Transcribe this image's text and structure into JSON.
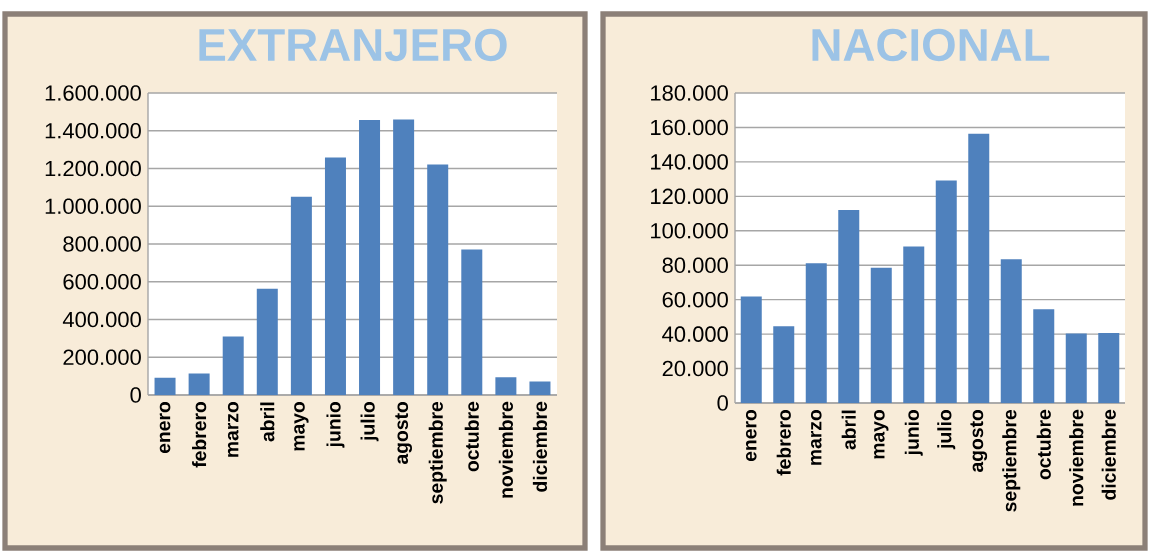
{
  "chart_data": [
    {
      "type": "bar",
      "title": "EXTRANJERO",
      "categories": [
        "enero",
        "febrero",
        "marzo",
        "abril",
        "mayo",
        "junio",
        "julio",
        "agosto",
        "septiembre",
        "octubre",
        "noviembre",
        "diciembre"
      ],
      "values": [
        92000,
        114000,
        310000,
        563000,
        1050000,
        1258000,
        1457000,
        1460000,
        1221000,
        771000,
        94000,
        71000
      ],
      "color": "#4f81bd",
      "ylim": [
        0,
        1600000
      ],
      "yticks": [
        0,
        {
          "value": 200000,
          "label": "200.000"
        },
        {
          "value": 400000,
          "label": "400.000"
        },
        {
          "value": 600000,
          "label": "600.000"
        },
        {
          "value": 800000,
          "label": "800.000"
        },
        {
          "value": 1000000,
          "label": "1.000.000"
        },
        {
          "value": 1200000,
          "label": "1.200.000"
        },
        {
          "value": 1400000,
          "label": "1.400.000"
        },
        {
          "value": 1600000,
          "label": "1.600.000"
        }
      ],
      "grid": "y"
    },
    {
      "type": "bar",
      "title": "NACIONAL",
      "categories": [
        "enero",
        "febrero",
        "marzo",
        "abril",
        "mayo",
        "junio",
        "julio",
        "agosto",
        "septiembre",
        "octubre",
        "noviembre",
        "diciembre"
      ],
      "values": [
        61900,
        44500,
        81200,
        112100,
        78500,
        90800,
        129200,
        156400,
        83400,
        54500,
        40400,
        40600
      ],
      "color": "#4f81bd",
      "ylim": [
        0,
        180000
      ],
      "yticks": [
        0,
        {
          "value": 20000,
          "label": "20.000"
        },
        {
          "value": 40000,
          "label": "40.000"
        },
        {
          "value": 60000,
          "label": "60.000"
        },
        {
          "value": 80000,
          "label": "80.000"
        },
        {
          "value": 100000,
          "label": "100.000"
        },
        {
          "value": 120000,
          "label": "120.000"
        },
        {
          "value": 140000,
          "label": "140.000"
        },
        {
          "value": 160000,
          "label": "160.000"
        },
        {
          "value": 180000,
          "label": "180.000"
        }
      ],
      "grid": "y"
    }
  ]
}
